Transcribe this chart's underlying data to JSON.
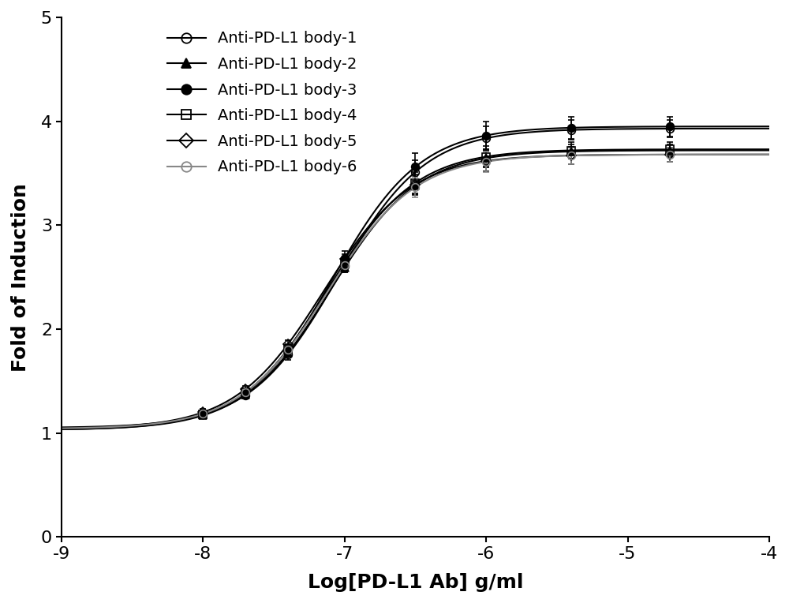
{
  "title": "",
  "xlabel": "Log[PD-L1 Ab] g/ml",
  "ylabel": "Fold of Induction",
  "xlim": [
    -9,
    -4
  ],
  "ylim": [
    0,
    5
  ],
  "xticks": [
    -9,
    -8,
    -7,
    -6,
    -5,
    -4
  ],
  "yticks": [
    0,
    1,
    2,
    3,
    4,
    5
  ],
  "series": [
    {
      "label": "Anti-PD-L1 body-1",
      "marker": "o",
      "fillstyle": "none",
      "color": "#000000",
      "bottom": 1.05,
      "top": 3.93,
      "ec50": -7.05,
      "hill": 1.4
    },
    {
      "label": "Anti-PD-L1 body-2",
      "marker": "^",
      "fillstyle": "full",
      "color": "#000000",
      "bottom": 1.03,
      "top": 3.72,
      "ec50": -7.1,
      "hill": 1.4
    },
    {
      "label": "Anti-PD-L1 body-3",
      "marker": "o",
      "fillstyle": "full",
      "color": "#000000",
      "bottom": 1.04,
      "top": 3.95,
      "ec50": -7.08,
      "hill": 1.4
    },
    {
      "label": "Anti-PD-L1 body-4",
      "marker": "s",
      "fillstyle": "none",
      "color": "#000000",
      "bottom": 1.03,
      "top": 3.73,
      "ec50": -7.12,
      "hill": 1.4
    },
    {
      "label": "Anti-PD-L1 body-5",
      "marker": "D",
      "fillstyle": "none",
      "color": "#000000",
      "bottom": 1.04,
      "top": 3.68,
      "ec50": -7.15,
      "hill": 1.4
    },
    {
      "label": "Anti-PD-L1 body-6",
      "marker": "o",
      "fillstyle": "none",
      "color": "#888888",
      "bottom": 1.04,
      "top": 3.68,
      "ec50": -7.12,
      "hill": 1.4
    }
  ],
  "data_points_x": [
    -8.0,
    -7.7,
    -7.4,
    -7.0,
    -6.5,
    -6.0,
    -5.4,
    -4.7
  ],
  "error_scale": 0.06,
  "background_color": "#ffffff",
  "font_family": "Arial",
  "label_fontsize": 18,
  "tick_fontsize": 16,
  "legend_fontsize": 14
}
